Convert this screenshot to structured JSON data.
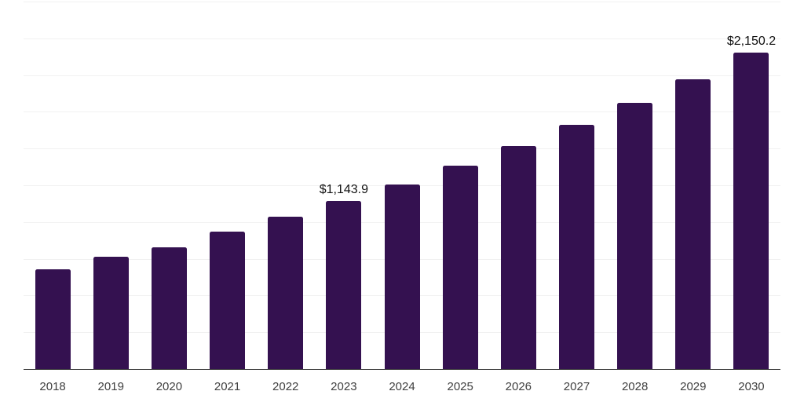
{
  "chart_data": {
    "type": "bar",
    "title": "",
    "xlabel": "",
    "ylabel": "",
    "categories": [
      "2018",
      "2019",
      "2020",
      "2021",
      "2022",
      "2023",
      "2024",
      "2025",
      "2026",
      "2027",
      "2028",
      "2029",
      "2030"
    ],
    "values": [
      680,
      766,
      827,
      937,
      1035,
      1143.9,
      1258,
      1382,
      1517,
      1659,
      1813,
      1972,
      2150.2
    ],
    "data_labels": {
      "2023": "$1,143.9",
      "2030": "$2,150.2"
    },
    "ylim": [
      0,
      2500
    ],
    "grid_step": 250,
    "grid": true,
    "y_tick_labels_visible": false,
    "legend_position": "none",
    "colors": {
      "bar": "#341150",
      "gridline": "#f1f1f1",
      "axis_line": "#333333",
      "x_tick_label": "#404040",
      "value_label": "#111111",
      "background": "#ffffff"
    }
  }
}
